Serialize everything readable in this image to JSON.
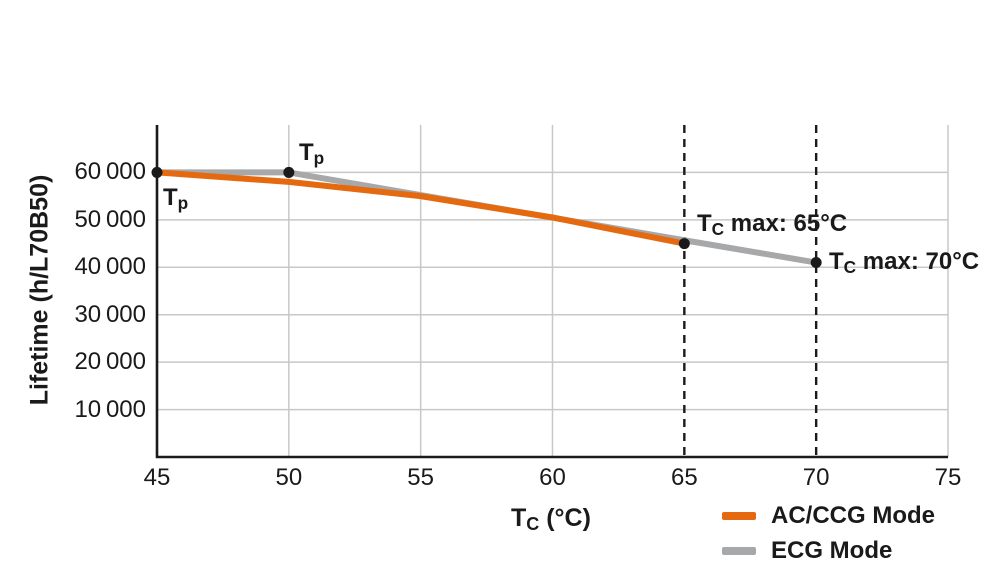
{
  "chart_data": {
    "type": "line",
    "title": "",
    "xlabel_text": "Tc (°C)",
    "ylabel_text": "Lifetime (h/L70B50)",
    "xlim": [
      45,
      75
    ],
    "ylim": [
      0,
      70000
    ],
    "xticks": [
      45,
      50,
      55,
      60,
      65,
      70,
      75
    ],
    "yticks": [
      {
        "value": 10000,
        "label": "10 000"
      },
      {
        "value": 20000,
        "label": "20 000"
      },
      {
        "value": 30000,
        "label": "30 000"
      },
      {
        "value": 40000,
        "label": "40 000"
      },
      {
        "value": 50000,
        "label": "50 000"
      },
      {
        "value": 60000,
        "label": "60 000"
      }
    ],
    "grid": true,
    "dashed_vlines": [
      65,
      70
    ],
    "series": [
      {
        "name": "ECG Mode",
        "color": "#A7A8AA",
        "points": [
          [
            45,
            60000
          ],
          [
            50,
            60000
          ],
          [
            65,
            45700
          ],
          [
            70,
            41000
          ]
        ]
      },
      {
        "name": "AC/CCG Mode",
        "color": "#E5690F",
        "points": [
          [
            45,
            60000
          ],
          [
            50,
            58000
          ],
          [
            55,
            55000
          ],
          [
            60,
            50500
          ],
          [
            65,
            45000
          ]
        ]
      }
    ],
    "markers": [
      [
        45,
        60000
      ],
      [
        50,
        60000
      ],
      [
        65,
        45000
      ],
      [
        70,
        41000
      ]
    ],
    "legend_position": "bottom-right"
  },
  "axis_titles": {
    "x": {
      "main": "T",
      "sub": "C",
      "rest": " (°C)"
    },
    "y": "Lifetime (h/L70B50)"
  },
  "annotations": {
    "tp_45": {
      "main": "T",
      "sub": "p",
      "rest": ""
    },
    "tp_50": {
      "main": "T",
      "sub": "p",
      "rest": ""
    },
    "tc_max_65": {
      "main": "T",
      "sub": "C",
      "rest": " max: 65°C"
    },
    "tc_max_70": {
      "main": "T",
      "sub": "C",
      "rest": " max: 70°C"
    }
  },
  "legend": {
    "items": [
      {
        "label": "AC/CCG Mode",
        "color": "#E5690F"
      },
      {
        "label": "ECG Mode",
        "color": "#A7A8AA"
      }
    ]
  },
  "colors": {
    "axis": "#1a1a1a",
    "grid": "#c8c8c8",
    "marker": "#1a1a1a",
    "dashed_line": "#1a1a1a"
  }
}
